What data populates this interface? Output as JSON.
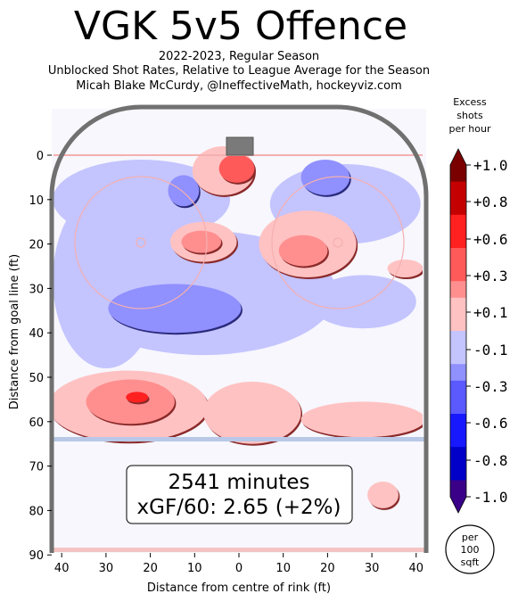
{
  "title": "VGK 5v5 Offence",
  "subtitle_lines": [
    "2022-2023, Regular Season",
    "Unblocked Shot Rates, Relative to League Average for the Season",
    "Micah Blake McCurdy, @IneffectiveMath, hockeyviz.com"
  ],
  "chart_data": {
    "type": "heatmap",
    "xlabel": "Distance from centre of rink (ft)",
    "ylabel": "Distance from goal line (ft)",
    "x_ticks": [
      40,
      30,
      20,
      10,
      0,
      10,
      20,
      30,
      40
    ],
    "y_ticks": [
      0,
      10,
      20,
      30,
      40,
      50,
      60,
      70,
      80,
      90
    ],
    "xlim": [
      -42.5,
      42.5
    ],
    "ylim": [
      -11,
      90
    ],
    "colorbar": {
      "title_lines": [
        "Excess",
        "shots",
        "per hour"
      ],
      "tick_labels": [
        "+1.0",
        "+0.8",
        "+0.6",
        "+0.3",
        "+0.1",
        "-0.1",
        "-0.3",
        "-0.6",
        "-0.8",
        "-1.0"
      ],
      "range": [
        -1.0,
        1.0
      ],
      "unit_badge": [
        "per",
        "100",
        "sqft"
      ]
    },
    "annotation": {
      "minutes": "2541 minutes",
      "xgf": "xGF/60: 2.65 (+2%)"
    },
    "regions": [
      {
        "x": -3.5,
        "y": 3.5,
        "rx": 7,
        "ry": 5.5,
        "value": 0.1
      },
      {
        "x": -0.5,
        "y": 3.0,
        "rx": 4,
        "ry": 3.2,
        "value": 0.4
      },
      {
        "x": -12.5,
        "y": 8.0,
        "rx": 3.5,
        "ry": 3.5,
        "value": -0.3
      },
      {
        "x": 19.5,
        "y": 5.0,
        "rx": 5.5,
        "ry": 4.0,
        "value": -0.3
      },
      {
        "x": -8.0,
        "y": 19.5,
        "rx": 7.5,
        "ry": 4.5,
        "value": 0.1
      },
      {
        "x": -8.5,
        "y": 19.5,
        "rx": 4.5,
        "ry": 2.5,
        "value": 0.3
      },
      {
        "x": 15.5,
        "y": 20.0,
        "rx": 11,
        "ry": 7.5,
        "value": 0.1
      },
      {
        "x": 14.5,
        "y": 21.5,
        "rx": 5.5,
        "ry": 3.5,
        "value": 0.3
      },
      {
        "x": -14.5,
        "y": 34.5,
        "rx": 15,
        "ry": 5.5,
        "value": -0.3
      },
      {
        "x": 37.5,
        "y": 25.5,
        "rx": 4,
        "ry": 2,
        "value": 0.1
      },
      {
        "x": -25.0,
        "y": 56.5,
        "rx": 18,
        "ry": 8,
        "value": 0.1
      },
      {
        "x": -24.5,
        "y": 55.5,
        "rx": 10,
        "ry": 5,
        "value": 0.3
      },
      {
        "x": -23.0,
        "y": 54.5,
        "rx": 2.5,
        "ry": 1.2,
        "value": 0.6
      },
      {
        "x": 3.0,
        "y": 58.0,
        "rx": 11,
        "ry": 7,
        "value": 0.1
      },
      {
        "x": 28.0,
        "y": 59.5,
        "rx": 14,
        "ry": 4,
        "value": 0.1
      },
      {
        "x": 32.5,
        "y": 76.5,
        "rx": 3.5,
        "ry": 3,
        "value": 0.1
      }
    ],
    "background_regions": [
      {
        "x": -22,
        "y": 10,
        "rx": 20,
        "ry": 9,
        "value": -0.1
      },
      {
        "x": 24,
        "y": 11,
        "rx": 17,
        "ry": 9,
        "value": -0.1
      },
      {
        "x": -30,
        "y": 28,
        "rx": 12,
        "ry": 20,
        "value": -0.1
      },
      {
        "x": -8,
        "y": 31,
        "rx": 30,
        "ry": 14,
        "value": -0.1
      },
      {
        "x": 28,
        "y": 33,
        "rx": 12,
        "ry": 6,
        "value": -0.1
      }
    ]
  }
}
